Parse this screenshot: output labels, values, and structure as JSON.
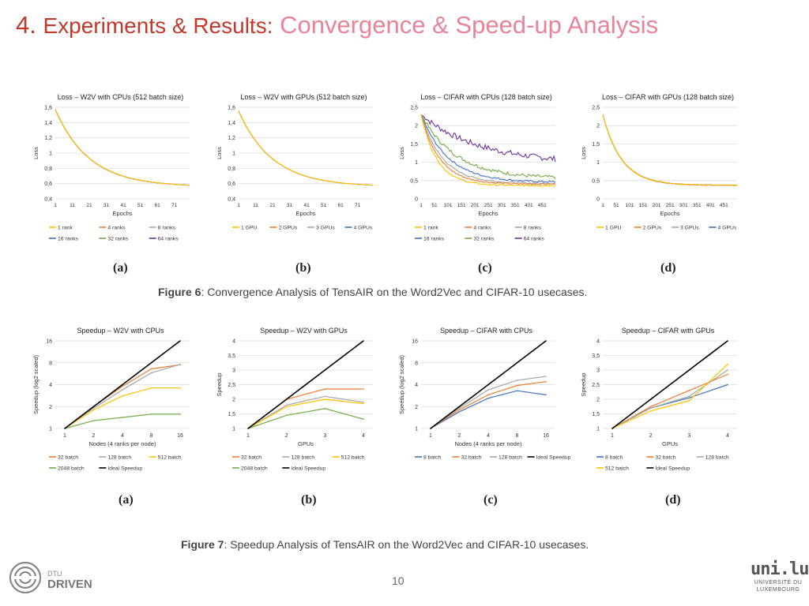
{
  "slide": {
    "number": "4.",
    "title_main": "Experiments & Results:",
    "title_sub": "Convergence & Speed-up Analysis",
    "page_number": "10"
  },
  "figure6": {
    "caption_bold": "Figure 6",
    "caption_text": ": Convergence Analysis of TensAIR on the Word2Vec and CIFAR-10 usecases."
  },
  "figure7": {
    "caption_bold": "Figure 7",
    "caption_text": ": Speedup Analysis of TensAIR on the Word2Vec and CIFAR-10 usecases."
  },
  "logos": {
    "dtu_line1": "DTU",
    "dtu_line2": "DRIVEN",
    "uni_mark": "uni.lu",
    "uni_line1": "UNIVERSITÉ DU",
    "uni_line2": "LUXEMBOURG"
  },
  "colors": {
    "blue": "#4472c4",
    "orange": "#ed7d31",
    "gray": "#a5a5a5",
    "yellow": "#ffc000",
    "lightblue": "#5b9bd5",
    "green": "#70ad47",
    "purple": "#7030a0",
    "black": "#000000"
  },
  "chart_data": [
    {
      "id": "fig6a",
      "panel_label": "(a)",
      "type": "line",
      "title": "Loss – W2V with CPUs (512 batch size)",
      "xlabel": "Epochs",
      "ylabel": "Loss",
      "xlim": [
        1,
        80
      ],
      "ylim": [
        0.4,
        1.6
      ],
      "yticks": [
        0.4,
        0.6,
        0.8,
        1,
        1.2,
        1.4,
        1.6
      ],
      "ytick_labels": [
        "0,4",
        "0,6",
        "0,8",
        "1",
        "1,2",
        "1,4",
        "1,6"
      ],
      "xticks": [
        1,
        11,
        21,
        31,
        41,
        51,
        61,
        71
      ],
      "curve": {
        "kind": "decay",
        "start": 1.57,
        "end": 0.56,
        "tau": 20,
        "noise": 0
      },
      "legend_cols": 3,
      "series": [
        {
          "name": "1 rank",
          "color": "#ffc000"
        },
        {
          "name": "4 ranks",
          "color": "#ed7d31"
        },
        {
          "name": "8 ranks",
          "color": "#a5a5a5"
        },
        {
          "name": "16 ranks",
          "color": "#4472c4"
        },
        {
          "name": "32 ranks",
          "color": "#70ad47"
        },
        {
          "name": "64 ranks",
          "color": "#7030a0"
        }
      ]
    },
    {
      "id": "fig6b",
      "panel_label": "(b)",
      "type": "line",
      "title": "Loss – W2V with GPUs (512 batch size)",
      "xlabel": "Epochs",
      "ylabel": "Loss",
      "xlim": [
        1,
        80
      ],
      "ylim": [
        0.4,
        1.6
      ],
      "yticks": [
        0.4,
        0.6,
        0.8,
        1,
        1.2,
        1.4,
        1.6
      ],
      "ytick_labels": [
        "0,4",
        "0,6",
        "0,8",
        "1",
        "1,2",
        "1,4",
        "1,6"
      ],
      "xticks": [
        1,
        11,
        21,
        31,
        41,
        51,
        61,
        71
      ],
      "curve": {
        "kind": "decay",
        "start": 1.55,
        "end": 0.56,
        "tau": 20,
        "noise": 0
      },
      "legend_cols": 4,
      "series": [
        {
          "name": "1 GPU",
          "color": "#ffc000"
        },
        {
          "name": "2 GPUs",
          "color": "#ed7d31"
        },
        {
          "name": "3 GPUs",
          "color": "#a5a5a5"
        },
        {
          "name": "4 GPUs",
          "color": "#4472c4"
        }
      ]
    },
    {
      "id": "fig6c",
      "panel_label": "(c)",
      "type": "line",
      "title": "Loss – CIFAR with CPUs (128 batch size)",
      "xlabel": "Epochs",
      "ylabel": "Loss",
      "xlim": [
        1,
        500
      ],
      "ylim": [
        0,
        2.5
      ],
      "yticks": [
        0,
        0.5,
        1,
        1.5,
        2,
        2.5
      ],
      "ytick_labels": [
        "0",
        "0,5",
        "1",
        "1,5",
        "2",
        "2,5"
      ],
      "xticks": [
        1,
        51,
        101,
        151,
        201,
        251,
        301,
        351,
        401,
        451
      ],
      "legend_cols": 3,
      "series": [
        {
          "name": "1 rank",
          "color": "#ffc000",
          "start": 2.3,
          "end": 0.36,
          "tau": 60,
          "noise": 0.02
        },
        {
          "name": "4 ranks",
          "color": "#ed7d31",
          "start": 2.3,
          "end": 0.4,
          "tau": 70,
          "noise": 0.02
        },
        {
          "name": "8 ranks",
          "color": "#a5a5a5",
          "start": 2.3,
          "end": 0.42,
          "tau": 80,
          "noise": 0.02
        },
        {
          "name": "16 ranks",
          "color": "#4472c4",
          "start": 2.3,
          "end": 0.45,
          "tau": 100,
          "noise": 0.025
        },
        {
          "name": "32 ranks",
          "color": "#70ad47",
          "start": 2.3,
          "end": 0.55,
          "tau": 130,
          "noise": 0.05
        },
        {
          "name": "64 ranks",
          "color": "#7030a0",
          "start": 2.3,
          "end": 0.95,
          "tau": 220,
          "noise": 0.08
        }
      ]
    },
    {
      "id": "fig6d",
      "panel_label": "(d)",
      "type": "line",
      "title": "Loss – CIFAR with GPUs (128 batch size)",
      "xlabel": "Epochs",
      "ylabel": "Loss",
      "xlim": [
        1,
        500
      ],
      "ylim": [
        0,
        2.5
      ],
      "yticks": [
        0,
        0.5,
        1,
        1.5,
        2,
        2.5
      ],
      "ytick_labels": [
        "0",
        "0,5",
        "1",
        "1,5",
        "2",
        "2,5"
      ],
      "xticks": [
        1,
        51,
        101,
        151,
        201,
        251,
        301,
        351,
        401,
        451
      ],
      "curve": {
        "kind": "decay",
        "start": 2.3,
        "end": 0.37,
        "tau": 70,
        "noise": 0.01
      },
      "legend_cols": 4,
      "series": [
        {
          "name": "1 GPU",
          "color": "#ffc000"
        },
        {
          "name": "2 GPUs",
          "color": "#ed7d31"
        },
        {
          "name": "3 GPUs",
          "color": "#a5a5a5"
        },
        {
          "name": "4 GPUs",
          "color": "#4472c4"
        }
      ]
    },
    {
      "id": "fig7a",
      "panel_label": "(a)",
      "type": "line",
      "title": "Speedup – W2V with CPUs",
      "xlabel": "Nodes (4 ranks per node)",
      "ylabel": "Speedup (log2 scaled)",
      "yscale": "log2",
      "categories": [
        "1",
        "2",
        "4",
        "8",
        "16"
      ],
      "ylim": [
        1,
        16
      ],
      "yticks": [
        1,
        2,
        4,
        8,
        16
      ],
      "ytick_labels": [
        "1",
        "2",
        "4",
        "8",
        "16"
      ],
      "legend_cols": 3,
      "series": [
        {
          "name": "32 batch",
          "color": "#ed7d31",
          "values": [
            1,
            2.0,
            3.8,
            6.6,
            7.5
          ]
        },
        {
          "name": "128 batch",
          "color": "#a5a5a5",
          "values": [
            1,
            1.9,
            3.4,
            5.8,
            7.6
          ]
        },
        {
          "name": "512 batch",
          "color": "#ffc000",
          "values": [
            1,
            1.8,
            2.8,
            3.6,
            3.6
          ]
        },
        {
          "name": "2048 batch",
          "color": "#70ad47",
          "values": [
            1,
            1.28,
            1.42,
            1.57,
            1.57
          ]
        },
        {
          "name": "Ideal Speedup",
          "color": "#000000",
          "values": [
            1,
            2,
            4,
            8,
            16
          ]
        }
      ]
    },
    {
      "id": "fig7b",
      "panel_label": "(b)",
      "type": "line",
      "title": "Speedup – W2V with GPUs",
      "xlabel": "GPUs",
      "ylabel": "Speedup",
      "categories": [
        "1",
        "2",
        "3",
        "4"
      ],
      "ylim": [
        1,
        4
      ],
      "yticks": [
        1,
        1.5,
        2,
        2.5,
        3,
        3.5,
        4
      ],
      "ytick_labels": [
        "1",
        "1,5",
        "2",
        "2,5",
        "3",
        "3,5",
        "4"
      ],
      "legend_cols": 3,
      "series": [
        {
          "name": "32 batch",
          "color": "#ed7d31",
          "values": [
            1,
            2.0,
            2.35,
            2.35
          ]
        },
        {
          "name": "128 batch",
          "color": "#a5a5a5",
          "values": [
            1,
            1.8,
            2.1,
            1.9
          ]
        },
        {
          "name": "512 batch",
          "color": "#ffc000",
          "values": [
            1,
            1.75,
            2.0,
            1.85
          ]
        },
        {
          "name": "2048 batch",
          "color": "#70ad47",
          "values": [
            1,
            1.45,
            1.68,
            1.32
          ]
        },
        {
          "name": "Ideal Speedup",
          "color": "#000000",
          "values": [
            1,
            2,
            3,
            4
          ]
        }
      ]
    },
    {
      "id": "fig7c",
      "panel_label": "(c)",
      "type": "line",
      "title": "Speedup – CIFAR with CPUs",
      "xlabel": "Nodes (4 ranks per node)",
      "ylabel": "Speedup (log2 scaled)",
      "yscale": "log2",
      "categories": [
        "1",
        "2",
        "4",
        "8",
        "16"
      ],
      "ylim": [
        1,
        16
      ],
      "yticks": [
        1,
        2,
        4,
        8,
        16
      ],
      "ytick_labels": [
        "1",
        "2",
        "4",
        "8",
        "16"
      ],
      "legend_cols": 4,
      "series": [
        {
          "name": "8 batch",
          "color": "#4472c4",
          "values": [
            1,
            1.7,
            2.6,
            3.3,
            2.9
          ]
        },
        {
          "name": "32 batch",
          "color": "#ed7d31",
          "values": [
            1,
            1.8,
            2.9,
            3.9,
            4.4
          ]
        },
        {
          "name": "128 batch",
          "color": "#a5a5a5",
          "values": [
            1,
            1.9,
            3.4,
            4.6,
            5.2
          ]
        },
        {
          "name": "Ideal Speedup",
          "color": "#000000",
          "values": [
            1,
            2,
            4,
            8,
            16
          ]
        }
      ]
    },
    {
      "id": "fig7d",
      "panel_label": "(d)",
      "type": "line",
      "title": "Speedup – CIFAR with GPUs",
      "xlabel": "GPUs",
      "ylabel": "Speedup",
      "categories": [
        "1",
        "2",
        "3",
        "4"
      ],
      "ylim": [
        1,
        4
      ],
      "yticks": [
        1,
        1.5,
        2,
        2.5,
        3,
        3.5,
        4
      ],
      "ytick_labels": [
        "1",
        "1,5",
        "2",
        "2,5",
        "3",
        "3,5",
        "4"
      ],
      "legend_cols": 3,
      "series": [
        {
          "name": "8 batch",
          "color": "#4472c4",
          "values": [
            1,
            1.7,
            2.05,
            2.5
          ]
        },
        {
          "name": "32 batch",
          "color": "#ed7d31",
          "values": [
            1,
            1.75,
            2.3,
            2.85
          ]
        },
        {
          "name": "128 batch",
          "color": "#a5a5a5",
          "values": [
            1,
            1.7,
            2.1,
            3.0
          ]
        },
        {
          "name": "512 batch",
          "color": "#ffc000",
          "values": [
            1,
            1.6,
            1.95,
            3.2
          ]
        },
        {
          "name": "Ideal Speedup",
          "color": "#000000",
          "values": [
            1,
            2,
            3,
            4
          ]
        }
      ]
    }
  ]
}
